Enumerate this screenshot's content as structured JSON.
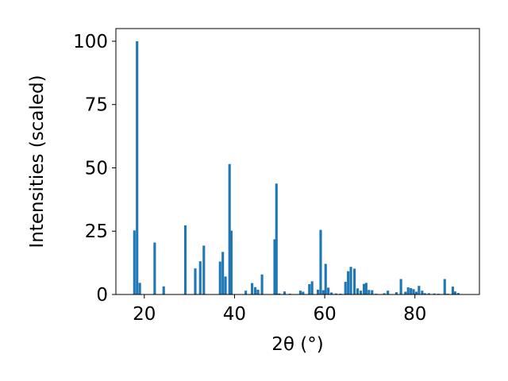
{
  "chart_data": {
    "type": "bar",
    "title": "",
    "xlabel": "2θ (°)",
    "ylabel": "Intensities (scaled)",
    "xlim": [
      13.7,
      94.3
    ],
    "ylim": [
      0,
      105
    ],
    "xticks": [
      20,
      40,
      60,
      80
    ],
    "yticks": [
      0,
      25,
      50,
      75,
      100
    ],
    "xtick_labels": [
      "20",
      "40",
      "60",
      "80"
    ],
    "ytick_labels": [
      "0",
      "25",
      "50",
      "75",
      "100"
    ],
    "grid": false,
    "bar_width_deg": 0.55,
    "series": [
      {
        "color": "#1f77b4",
        "x": [
          17.8,
          18.4,
          19.0,
          22.3,
          24.3,
          29.1,
          31.3,
          32.4,
          33.2,
          36.8,
          37.4,
          38.0,
          38.9,
          39.3,
          42.5,
          43.9,
          44.6,
          45.2,
          46.1,
          48.9,
          49.3,
          49.9,
          51.1,
          52.3,
          54.6,
          55.2,
          56.6,
          57.2,
          58.5,
          59.1,
          59.7,
          60.2,
          60.8,
          61.5,
          62.5,
          63.5,
          64.6,
          65.2,
          65.8,
          66.6,
          67.3,
          68.0,
          68.7,
          69.2,
          69.8,
          70.5,
          71.4,
          73.2,
          74.0,
          75.9,
          76.9,
          77.9,
          78.5,
          79.1,
          79.7,
          80.3,
          80.9,
          81.6,
          82.2,
          83.1,
          84.3,
          85.2,
          86.6,
          87.3,
          88.4,
          88.9,
          89.6
        ],
        "values": [
          25.3,
          100,
          4.6,
          20.5,
          3.2,
          27.3,
          10.3,
          13.1,
          19.3,
          13.0,
          16.8,
          7.1,
          51.5,
          25.2,
          1.5,
          4.5,
          2.9,
          1.9,
          7.9,
          21.8,
          43.8,
          0.4,
          1.2,
          0.3,
          1.5,
          1.1,
          4.1,
          5.2,
          1.9,
          25.5,
          1.7,
          12.1,
          2.7,
          0.8,
          0.4,
          0.3,
          5.0,
          9.2,
          10.9,
          10.2,
          2.4,
          1.5,
          4.2,
          4.6,
          1.8,
          1.7,
          0.3,
          0.5,
          1.5,
          0.9,
          6.1,
          1.1,
          2.8,
          2.5,
          2.1,
          1.1,
          3.4,
          1.5,
          0.5,
          0.5,
          0.4,
          0.3,
          6.1,
          0.3,
          3.1,
          1.2,
          0.6
        ]
      }
    ]
  }
}
